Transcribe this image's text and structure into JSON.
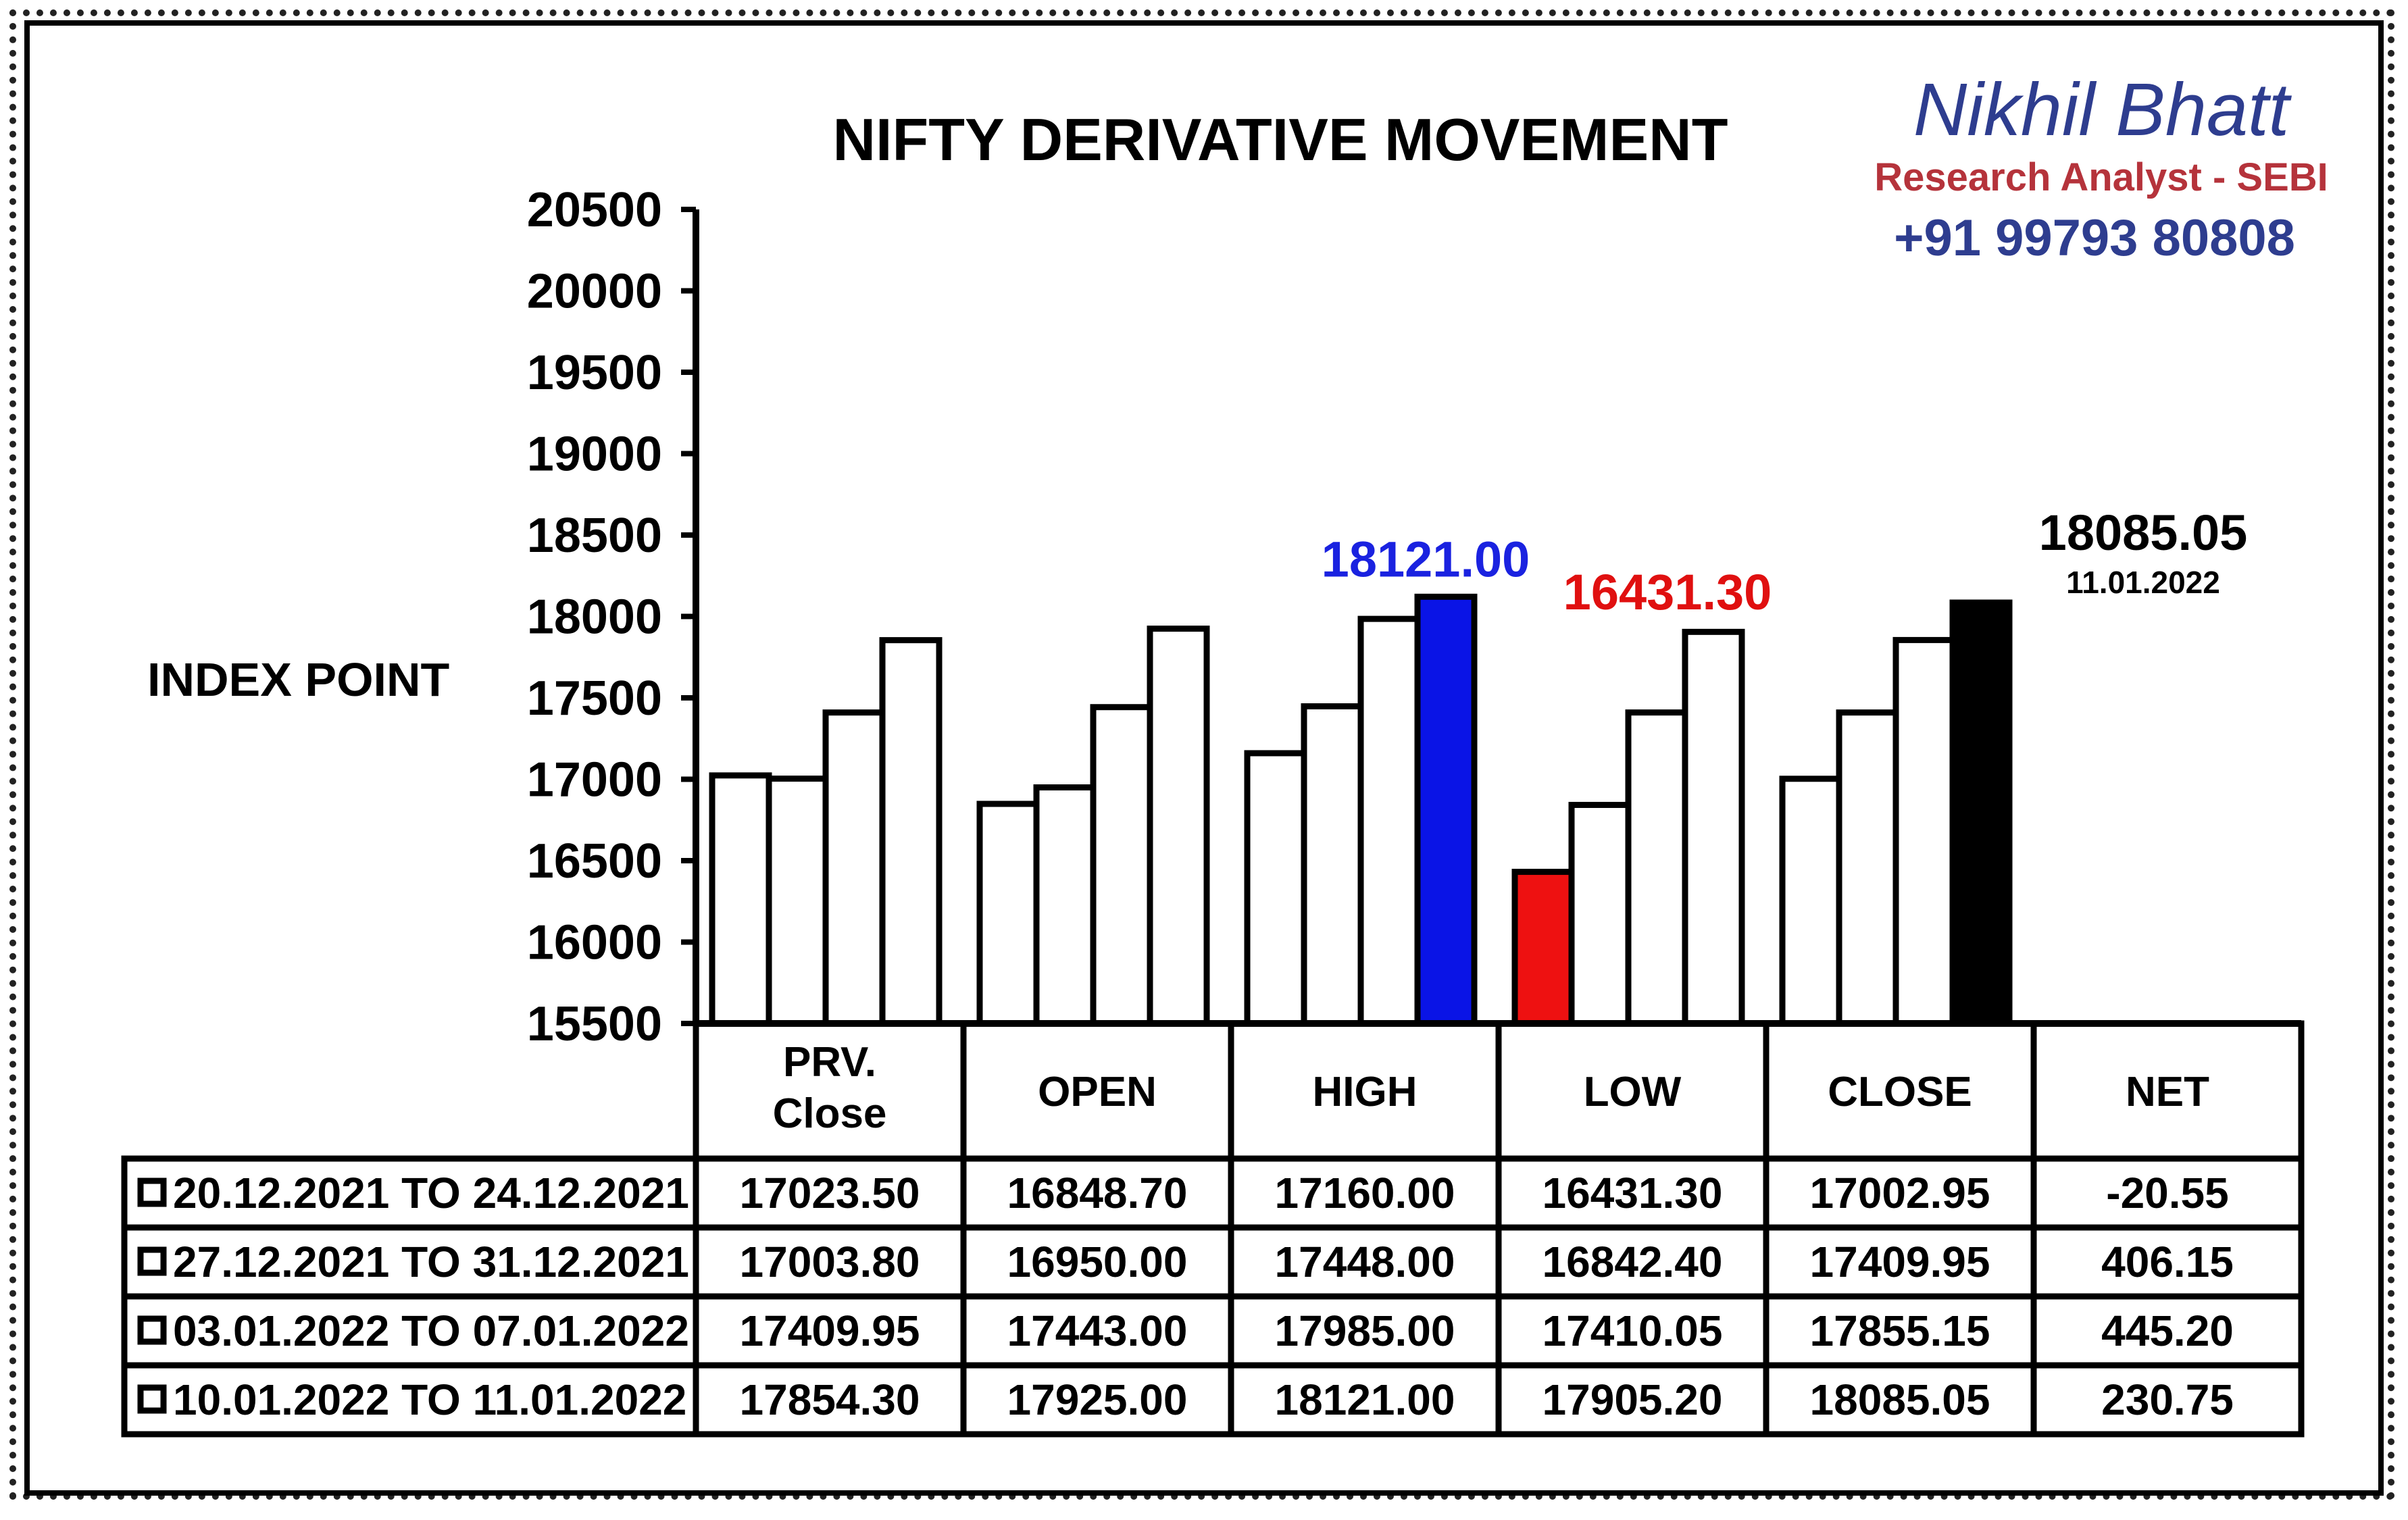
{
  "chart_data": {
    "type": "bar",
    "title": "NIFTY DERIVATIVE MOVEMENT",
    "ylabel": "INDEX POINT",
    "ylim": [
      15500,
      20500
    ],
    "ytick_step": 500,
    "categories": [
      "PRV. Close",
      "OPEN",
      "HIGH",
      "LOW",
      "CLOSE"
    ],
    "header_columns": [
      "PRV.\nClose",
      "OPEN",
      "HIGH",
      "LOW",
      "CLOSE",
      "NET"
    ],
    "series": [
      {
        "name": "20.12.2021 TO 24.12.2021",
        "values": [
          17023.5,
          16848.7,
          17160.0,
          16431.3,
          17002.95
        ],
        "net": -20.55
      },
      {
        "name": "27.12.2021 TO 31.12.2021",
        "values": [
          17003.8,
          16950.0,
          17448.0,
          16842.4,
          17409.95
        ],
        "net": 406.15
      },
      {
        "name": "03.01.2022 TO 07.01.2022",
        "values": [
          17409.95,
          17443.0,
          17985.0,
          17410.05,
          17855.15
        ],
        "net": 445.2
      },
      {
        "name": "10.01.2022 TO 11.01.2022",
        "values": [
          17854.3,
          17925.0,
          18121.0,
          17905.2,
          18085.05
        ],
        "net": 230.75
      }
    ],
    "table": {
      "rows": [
        [
          "17023.50",
          "16848.70",
          "17160.00",
          "16431.30",
          "17002.95",
          "-20.55"
        ],
        [
          "17003.80",
          "16950.00",
          "17448.00",
          "16842.40",
          "17409.95",
          "406.15"
        ],
        [
          "17409.95",
          "17443.00",
          "17985.00",
          "17410.05",
          "17855.15",
          "445.20"
        ],
        [
          "17854.30",
          "17925.00",
          "18121.00",
          "17905.20",
          "18085.05",
          "230.75"
        ]
      ]
    },
    "highlights": [
      {
        "category": "HIGH",
        "series_index": 3,
        "fill": "#0a14e6",
        "label": "18121.00",
        "label_color": "#1a22e0"
      },
      {
        "category": "LOW",
        "series_index": 0,
        "fill": "#ee1111",
        "label": "16431.30",
        "label_color": "#e01010"
      },
      {
        "category": "CLOSE",
        "series_index": 3,
        "fill": "#000000",
        "label": "18085.05",
        "label_color": "#000000",
        "sublabel": "11.01.2022"
      }
    ],
    "colors": {
      "title": "#1515e0",
      "default_fill": "#ffffff",
      "stroke": "#000000"
    }
  },
  "branding": {
    "name": "Nikhil Bhatt",
    "role": "Research Analyst - SEBI",
    "phone": "+91 99793 80808"
  }
}
